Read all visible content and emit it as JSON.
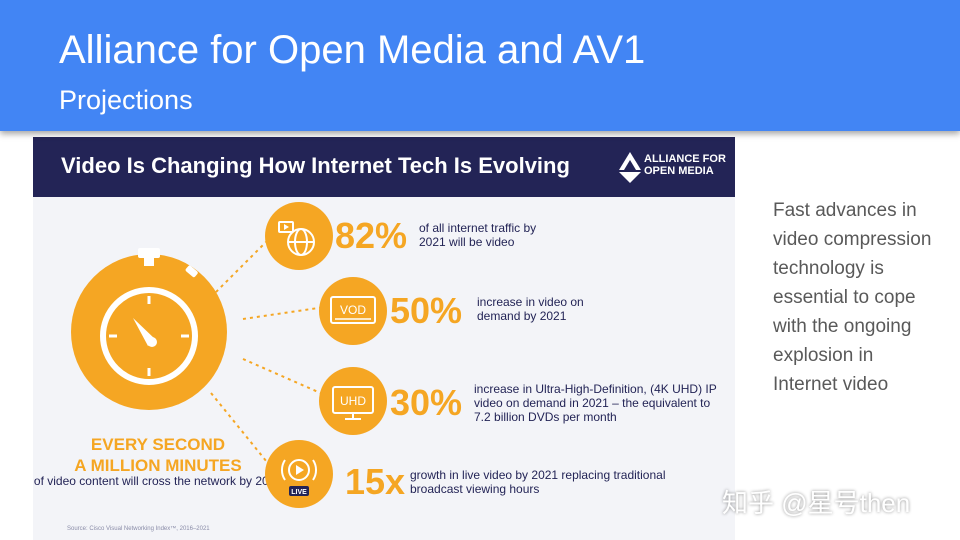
{
  "slide": {
    "title": "Alliance for Open Media and AV1",
    "subtitle": "Projections",
    "side_text": "Fast advances in video compression technology is essential to cope with the ongoing explosion in Internet video"
  },
  "infographic": {
    "heading": "Video Is Changing How Internet Tech Is Evolving",
    "logo_text": "ALLIANCE FOR\nOPEN MEDIA",
    "callout_line1": "EVERY SECOND",
    "callout_line2": "A MILLION MINUTES",
    "callout_sub": "of video content will cross the network by 2021",
    "stats": [
      {
        "value": "82%",
        "text": "of all internet traffic by 2021 will be video",
        "icon": "globe-play-icon"
      },
      {
        "value": "50%",
        "text": "increase in video on demand by 2021",
        "icon_label": "VOD",
        "icon": "vod-icon"
      },
      {
        "value": "30%",
        "text": "increase in Ultra-High-Definition, (4K UHD) IP video on demand in 2021 – the equivalent to 7.2 billion DVDs per month",
        "icon_label": "UHD",
        "icon": "uhd-tv-icon"
      },
      {
        "value": "15x",
        "text": "growth in live video by 2021 replacing traditional broadcast viewing hours",
        "icon_label": "LIVE",
        "icon": "live-play-icon"
      }
    ],
    "source": "Source: Cisco Visual Networking Index™, 2016–2021"
  },
  "watermark": "知乎 @星号then",
  "colors": {
    "header_blue": "#4285f4",
    "navy": "#232456",
    "accent_orange": "#f5a623",
    "body_text": "#595959"
  }
}
